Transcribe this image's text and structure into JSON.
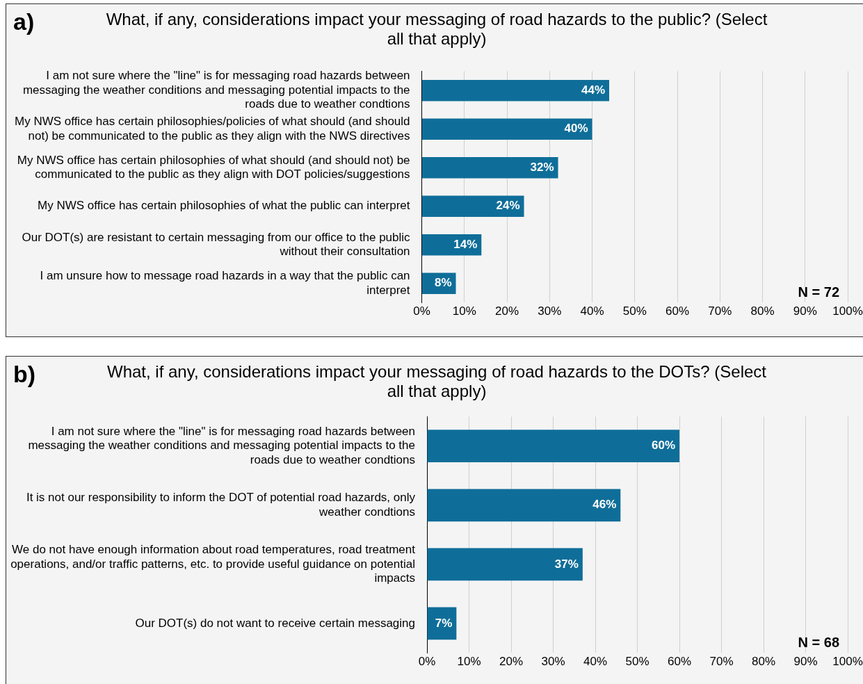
{
  "chart_data": [
    {
      "type": "bar",
      "orientation": "horizontal",
      "title": "What, if any, considerations impact your messaging of road hazards to the public? (Select all that apply)",
      "categories": [
        "I am not sure where the \"line\" is for messaging road hazards between messaging the weather conditions and messaging potential impacts to the roads due to weather condtions",
        "My NWS office has certain philosophies/policies of what should (and should not) be communicated to the public as they align with the NWS directives",
        "My NWS office has certain philosophies of what should (and should not) be communicated to the public as they align with DOT policies/suggestions",
        "My NWS office has certain philosophies of what the public can interpret",
        "Our DOT(s) are resistant to certain messaging from our office to the public without their consultation",
        "I am unsure how to message road hazards in a way that the public can interpret"
      ],
      "values": [
        44,
        40,
        32,
        24,
        14,
        8
      ],
      "value_labels": [
        "44%",
        "40%",
        "32%",
        "24%",
        "14%",
        "8%"
      ],
      "color": "#0f6e99",
      "xlim": [
        0,
        100
      ],
      "xticks": [
        {
          "value": 0,
          "label": "0%"
        },
        {
          "value": 10,
          "label": "10%"
        },
        {
          "value": 20,
          "label": "20%"
        },
        {
          "value": 30,
          "label": "30%"
        },
        {
          "value": 40,
          "label": "40%"
        },
        {
          "value": 50,
          "label": "50%"
        },
        {
          "value": 60,
          "label": "60%"
        },
        {
          "value": 70,
          "label": "70%"
        },
        {
          "value": 80,
          "label": "80%"
        },
        {
          "value": 90,
          "label": "90%"
        },
        {
          "value": 100,
          "label": "100%"
        }
      ],
      "grid": "x",
      "legend": false,
      "annotations": [
        "a)",
        "N = 72"
      ]
    },
    {
      "type": "bar",
      "orientation": "horizontal",
      "title": "What, if any, considerations impact your messaging of road hazards to the DOTs? (Select all that apply)",
      "categories": [
        "I am not sure where the \"line\" is for messaging road hazards between messaging the weather conditions and messaging potential impacts to the roads due to weather condtions",
        "It is not our responsibility to inform the DOT of potential road hazards, only weather condtions",
        "We do not have enough information about road temperatures, road treatment operations, and/or traffic patterns, etc. to provide useful guidance on potential impacts",
        "Our DOT(s) do not want to receive certain messaging"
      ],
      "values": [
        60,
        46,
        37,
        7
      ],
      "value_labels": [
        "60%",
        "46%",
        "37%",
        "7%"
      ],
      "color": "#0f6e99",
      "xlim": [
        0,
        100
      ],
      "xticks": [
        {
          "value": 0,
          "label": "0%"
        },
        {
          "value": 10,
          "label": "10%"
        },
        {
          "value": 20,
          "label": "20%"
        },
        {
          "value": 30,
          "label": "30%"
        },
        {
          "value": 40,
          "label": "40%"
        },
        {
          "value": 50,
          "label": "50%"
        },
        {
          "value": 60,
          "label": "60%"
        },
        {
          "value": 70,
          "label": "70%"
        },
        {
          "value": 80,
          "label": "80%"
        },
        {
          "value": 90,
          "label": "90%"
        },
        {
          "value": 100,
          "label": "100%"
        }
      ],
      "grid": "x",
      "legend": false,
      "annotations": [
        "b)",
        "N = 68"
      ]
    }
  ]
}
